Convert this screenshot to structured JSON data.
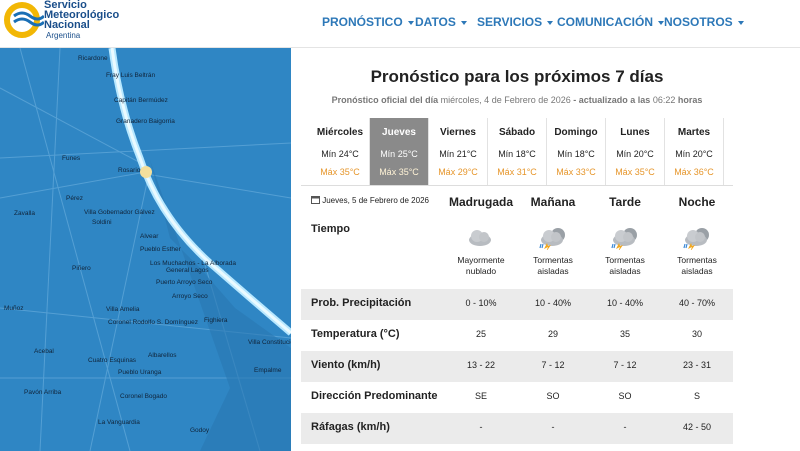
{
  "header": {
    "logo": {
      "line1": "Servicio",
      "line2": "Meteorológico",
      "line3": "Nacional",
      "line4": "Argentina"
    },
    "nav": [
      "PRONÓSTICO",
      "DATOS",
      "SERVICIOS",
      "COMUNICACIÓN",
      "NOSOTROS"
    ]
  },
  "map": {
    "labels": [
      "Ricardone",
      "Fray Luis Beltrán",
      "Capitán Bermúdez",
      "Granadero Baigorria",
      "Funes",
      "Rosario",
      "Pérez",
      "Zavalla",
      "Villa Gobernador Gálvez",
      "Soldini",
      "Alvear",
      "Pueblo Esther",
      "Piñero",
      "Los Muchachos - La Alborada",
      "General Lagos",
      "Puerto Arroyo Seco",
      "Arroyo Seco",
      "Villa Amelia",
      "Coronel Rodolfo S. Domínguez",
      "Fighiera",
      "Muñoz",
      "Acebal",
      "Cuatro Esquinas",
      "Albarellos",
      "Villa Constitución",
      "Pueblo Uranga",
      "Empalme",
      "Pavón Arriba",
      "Coronel Bogado",
      "La Vanguardia",
      "Godoy"
    ]
  },
  "forecast": {
    "title": "Pronóstico para los próximos 7 días",
    "subtitle": {
      "prefix": "Pronóstico oficial del día",
      "date": "miércoles, 4 de Febrero de 2026",
      "middle": "- actualizado a las",
      "time": "06:22",
      "suffix": "horas"
    },
    "days": [
      {
        "name": "Miércoles",
        "min": "Mín 24°C",
        "max": "Máx 35°C"
      },
      {
        "name": "Jueves",
        "min": "Mín 25°C",
        "max": "Máx 35°C"
      },
      {
        "name": "Viernes",
        "min": "Mín 21°C",
        "max": "Máx 29°C"
      },
      {
        "name": "Sábado",
        "min": "Mín 18°C",
        "max": "Máx 31°C"
      },
      {
        "name": "Domingo",
        "min": "Mín 18°C",
        "max": "Máx 33°C"
      },
      {
        "name": "Lunes",
        "min": "Mín 20°C",
        "max": "Máx 35°C"
      },
      {
        "name": "Martes",
        "min": "Mín 20°C",
        "max": "Máx 36°C"
      }
    ],
    "selected_day": 1,
    "table": {
      "date": "Jueves, 5 de Febrero de 2026",
      "columns": [
        "Madrugada",
        "Mañana",
        "Tarde",
        "Noche"
      ],
      "sky_label": "Tiempo",
      "sky": [
        "Mayormente nublado",
        "Tormentas aisladas",
        "Tormentas aisladas",
        "Tormentas aisladas"
      ],
      "rows": [
        {
          "label": "Prob. Precipitación",
          "cells": [
            "0 - 10%",
            "10 - 40%",
            "10 - 40%",
            "40 - 70%"
          ]
        },
        {
          "label": "Temperatura (°C)",
          "cells": [
            25,
            29,
            35,
            30
          ]
        },
        {
          "label": "Viento (km/h)",
          "cells": [
            "13 - 22",
            "7 - 12",
            "7 - 12",
            "23 - 31"
          ]
        },
        {
          "label": "Dirección Predominante",
          "cells": [
            "SE",
            "SO",
            "SO",
            "S"
          ]
        },
        {
          "label": "Ráfagas (km/h)",
          "cells": [
            "-",
            "-",
            "-",
            "42 - 50"
          ]
        }
      ]
    }
  }
}
